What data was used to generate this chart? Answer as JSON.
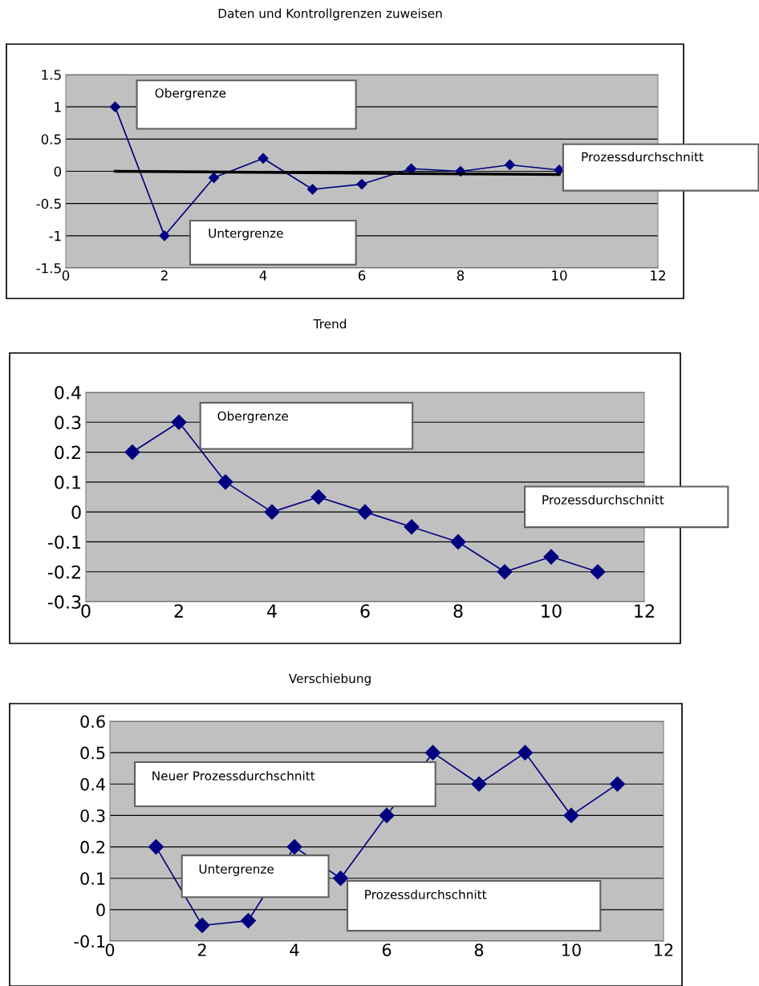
{
  "chart_data": [
    {
      "type": "line",
      "title": "Daten und Kontrollgrenzen zuweisen",
      "xlim": [
        0,
        12
      ],
      "xticks": [
        0,
        2,
        4,
        6,
        8,
        10,
        12
      ],
      "ylim": [
        -1.5,
        1.5
      ],
      "yticks": [
        -1.5,
        -1,
        -0.5,
        0,
        0.5,
        1,
        1.5
      ],
      "grid": "y",
      "marker": "diamond",
      "line_style": "solid",
      "legend": false,
      "series": [
        {
          "color": "#000080",
          "x": [
            1,
            2,
            3,
            4,
            5,
            6,
            7,
            8,
            9,
            10
          ],
          "values": [
            1,
            -1,
            -0.1,
            0.2,
            -0.28,
            -0.2,
            0.04,
            0.0,
            0.1,
            0.02
          ]
        },
        {
          "type": "line",
          "marker": "none",
          "color": "#000000",
          "x": [
            1,
            10
          ],
          "values": [
            0,
            -0.05
          ]
        }
      ],
      "annotations": [
        "Obergrenze",
        "Untergrenze",
        "Prozessdurchschnitt"
      ]
    },
    {
      "type": "line",
      "title": "Trend",
      "xlim": [
        0,
        12
      ],
      "xticks": [
        0,
        2,
        4,
        6,
        8,
        10,
        12
      ],
      "ylim": [
        -0.3,
        0.4
      ],
      "yticks": [
        -0.3,
        -0.2,
        -0.1,
        0,
        0.1,
        0.2,
        0.3,
        0.4
      ],
      "grid": "y",
      "marker": "diamond",
      "line_style": "solid",
      "legend": false,
      "series": [
        {
          "color": "#000080",
          "x": [
            1,
            2,
            3,
            4,
            5,
            6,
            7,
            8,
            9,
            10,
            11
          ],
          "values": [
            0.2,
            0.3,
            0.1,
            0,
            0.05,
            0,
            -0.05,
            -0.1,
            -0.2,
            -0.15,
            -0.2
          ]
        }
      ],
      "annotations": [
        "Obergrenze",
        "Prozessdurchschnitt"
      ]
    },
    {
      "type": "line",
      "title": "Verschiebung",
      "xlim": [
        0,
        12
      ],
      "xticks": [
        0,
        2,
        4,
        6,
        8,
        10,
        12
      ],
      "ylim": [
        -0.1,
        0.6
      ],
      "yticks": [
        -0.1,
        0,
        0.1,
        0.2,
        0.3,
        0.4,
        0.5,
        0.6
      ],
      "grid": "y",
      "marker": "diamond",
      "line_style": "solid",
      "legend": false,
      "series": [
        {
          "color": "#000080",
          "x": [
            1,
            2,
            3,
            4,
            5,
            6,
            7,
            8,
            9,
            10,
            11
          ],
          "values": [
            0.2,
            -0.05,
            -0.035,
            0.2,
            0.1,
            0.3,
            0.5,
            0.4,
            0.5,
            0.3,
            0.4
          ]
        }
      ],
      "annotations": [
        "Neuer Prozessdurchschnitt",
        "Untergrenze",
        "Prozessdurchschnitt"
      ]
    }
  ]
}
